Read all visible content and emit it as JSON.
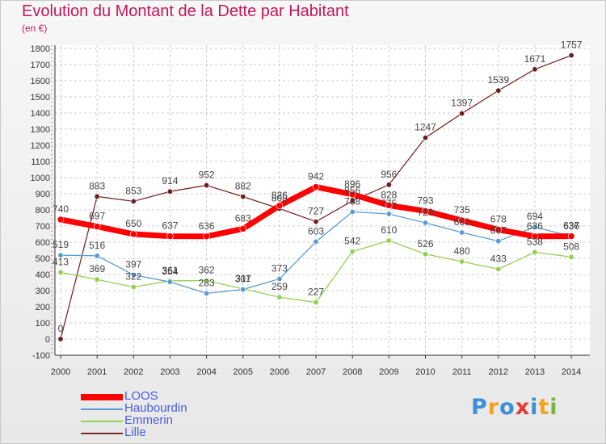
{
  "chart_data": {
    "type": "line",
    "title": "Evolution du Montant de la Dette par Habitant",
    "unit_label": "(en €)",
    "x": [
      "2000",
      "2001",
      "2002",
      "2003",
      "2004",
      "2005",
      "2006",
      "2007",
      "2008",
      "2009",
      "2010",
      "2011",
      "2012",
      "2013",
      "2014"
    ],
    "ylim": [
      -100,
      1800
    ],
    "yticks": [
      -100,
      0,
      100,
      200,
      300,
      400,
      500,
      600,
      700,
      800,
      900,
      1000,
      1100,
      1200,
      1300,
      1400,
      1500,
      1600,
      1700,
      1800
    ],
    "grid": true,
    "legend_position": "bottom-left",
    "series": [
      {
        "name": "LOOS",
        "color": "#ff0000",
        "values": [
          740,
          697,
          650,
          637,
          636,
          683,
          826,
          942,
          896,
          828,
          793,
          735,
          678,
          636,
          637
        ]
      },
      {
        "name": "Haubourdin",
        "color": "#5b9bd5",
        "values": [
          519,
          516,
          397,
          354,
          283,
          307,
          373,
          603,
          788,
          775,
          720,
          660,
          607,
          694,
          636
        ]
      },
      {
        "name": "Emmerin",
        "color": "#92d050",
        "values": [
          413,
          369,
          322,
          361,
          362,
          311,
          259,
          227,
          542,
          610,
          526,
          480,
          433,
          538,
          508
        ]
      },
      {
        "name": "Lille",
        "color": "#7b2a2a",
        "values": [
          0,
          883,
          853,
          914,
          952,
          882,
          808,
          727,
          856,
          956,
          1247,
          1397,
          1539,
          1671,
          1757
        ]
      }
    ]
  },
  "logo": {
    "letters": [
      "P",
      "r",
      "o",
      "x",
      "i",
      "t",
      "i"
    ],
    "colors": [
      "#3a8fd8",
      "#f3a21c",
      "#3a8fd8",
      "#e53935",
      "#3a8fd8",
      "#f3a21c",
      "#7cb342"
    ]
  }
}
